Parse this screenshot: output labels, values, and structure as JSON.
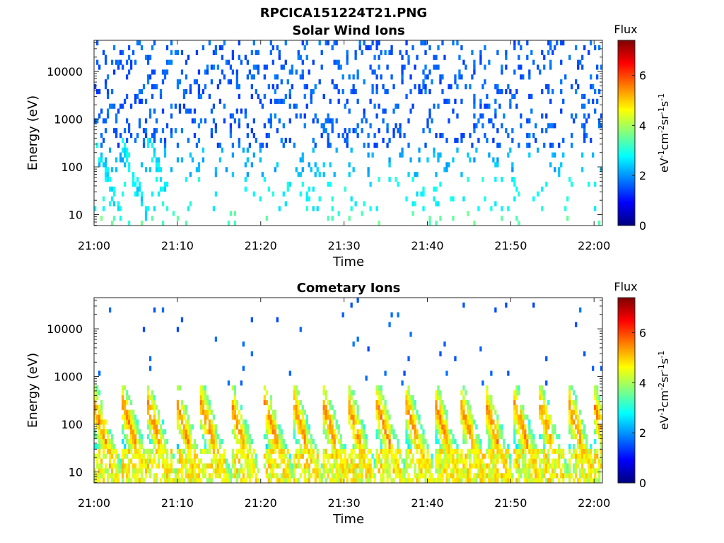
{
  "figure_title": "RPCICA151224T21.PNG",
  "colorscale": [
    "#00007f",
    "#0000ff",
    "#0080ff",
    "#00ffff",
    "#80ff80",
    "#ffff00",
    "#ff8000",
    "#ff0000",
    "#7f0000"
  ],
  "chart_data": [
    {
      "type": "heatmap",
      "title": "Solar Wind Ions",
      "xlabel": "Time",
      "ylabel": "Energy (eV)",
      "x_ticks": [
        "21:00",
        "21:10",
        "21:20",
        "21:30",
        "21:40",
        "21:50",
        "22:00"
      ],
      "y_ticks": [
        "10",
        "100",
        "1000",
        "10000"
      ],
      "y_scale": "log",
      "ylim": [
        5.9,
        45000
      ],
      "x_range_minutes": [
        0,
        61
      ],
      "colorbar": {
        "label_top": "Flux",
        "label": "eV-1cm-2sr-1s-1",
        "ticks": [
          "0",
          "2",
          "4",
          "6"
        ],
        "range": [
          0,
          7.4
        ]
      },
      "pattern": "solar-wind",
      "seed": 7
    },
    {
      "type": "heatmap",
      "title": "Cometary Ions",
      "xlabel": "Time",
      "ylabel": "Energy (eV)",
      "x_ticks": [
        "21:00",
        "21:10",
        "21:20",
        "21:30",
        "21:40",
        "21:50",
        "22:00"
      ],
      "y_ticks": [
        "10",
        "100",
        "1000",
        "10000"
      ],
      "y_scale": "log",
      "ylim": [
        5.9,
        45000
      ],
      "x_range_minutes": [
        0,
        61
      ],
      "colorbar": {
        "label_top": "Flux",
        "label": "eV-1cm-2sr-1s-1",
        "ticks": [
          "0",
          "2",
          "4",
          "6"
        ],
        "range": [
          0,
          7.4
        ]
      },
      "pattern": "cometary",
      "bursts_minutes": [
        0.3,
        3.8,
        6.8,
        10.2,
        13.2,
        16.8,
        20.8,
        24.3,
        27.8,
        30.8,
        34.3,
        37.8,
        41.3,
        44.3,
        47.3,
        50.8,
        53.8,
        57.3,
        60.3
      ],
      "seed": 21
    }
  ]
}
